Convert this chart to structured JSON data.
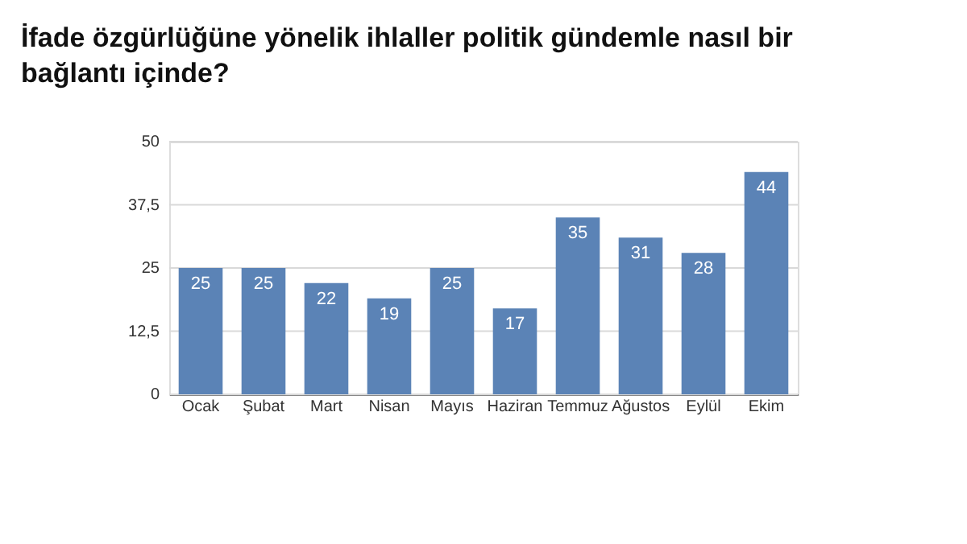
{
  "chart_data": {
    "type": "bar",
    "title": "İfade özgürlüğüne yönelik ihlaller politik gündemle nasıl bir bağlantı içinde?",
    "categories": [
      "Ocak",
      "Şubat",
      "Mart",
      "Nisan",
      "Mayıs",
      "Haziran",
      "Temmuz",
      "Ağustos",
      "Eylül",
      "Ekim"
    ],
    "values": [
      25,
      25,
      22,
      19,
      25,
      17,
      35,
      31,
      28,
      44
    ],
    "color": "#5b83b6",
    "ylim": [
      0,
      50
    ],
    "yticks": [
      0,
      {
        "value": 12.5,
        "label": "12,5"
      },
      25,
      {
        "value": 37.5,
        "label": "37,5"
      },
      50
    ],
    "grid": "y",
    "data_labels": true
  }
}
